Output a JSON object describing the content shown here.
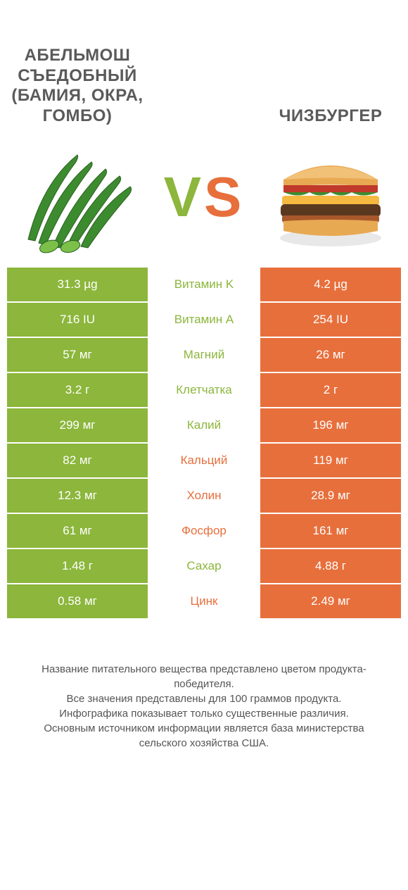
{
  "colors": {
    "left": "#8cb63c",
    "right": "#e76f3c",
    "text_dark": "#5a5a5a",
    "white": "#ffffff",
    "footer": "#555555"
  },
  "header": {
    "left_title": "Абельмош съедобный (бамия, окра, гомбо)",
    "right_title": "Чизбургер",
    "vs_v": "V",
    "vs_s": "S"
  },
  "typography": {
    "title_fontsize": 24,
    "cell_fontsize": 17,
    "vs_fontsize": 80,
    "footer_fontsize": 15
  },
  "rows": [
    {
      "nutrient": "Витамин K",
      "left": "31.3 µg",
      "right": "4.2 µg",
      "winner": "left"
    },
    {
      "nutrient": "Витамин A",
      "left": "716 IU",
      "right": "254 IU",
      "winner": "left"
    },
    {
      "nutrient": "Магний",
      "left": "57 мг",
      "right": "26 мг",
      "winner": "left"
    },
    {
      "nutrient": "Клетчатка",
      "left": "3.2 г",
      "right": "2 г",
      "winner": "left"
    },
    {
      "nutrient": "Калий",
      "left": "299 мг",
      "right": "196 мг",
      "winner": "left"
    },
    {
      "nutrient": "Кальций",
      "left": "82 мг",
      "right": "119 мг",
      "winner": "right"
    },
    {
      "nutrient": "Холин",
      "left": "12.3 мг",
      "right": "28.9 мг",
      "winner": "right"
    },
    {
      "nutrient": "Фосфор",
      "left": "61 мг",
      "right": "161 мг",
      "winner": "right"
    },
    {
      "nutrient": "Сахар",
      "left": "1.48 г",
      "right": "4.88 г",
      "winner": "left"
    },
    {
      "nutrient": "Цинк",
      "left": "0.58 мг",
      "right": "2.49 мг",
      "winner": "right"
    }
  ],
  "footer": {
    "line1": "Название питательного вещества представлено цветом продукта-победителя.",
    "line2": "Все значения представлены для 100 граммов продукта.",
    "line3": "Инфографика показывает только существенные различия.",
    "line4": "Основным источником информации является база министерства сельского хозяйства США."
  }
}
